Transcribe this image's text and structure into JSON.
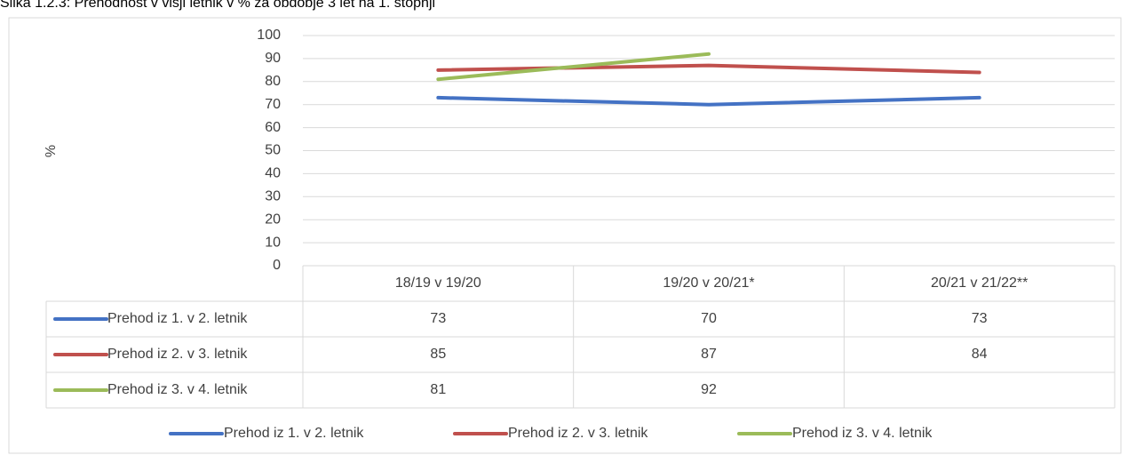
{
  "chart_data": {
    "type": "line",
    "title": "Slika 1.2.3: Prehodnost v višji letnik v % za obdobje 3 let na 1. stopnji",
    "y_label": "%",
    "categories": [
      "18/19 v 19/20",
      "19/20 v 20/21*",
      "20/21 v 21/22**"
    ],
    "series": [
      {
        "name": "Prehod iz 1. v 2. letnik",
        "color": "#4472c4",
        "values": [
          73,
          70,
          73
        ]
      },
      {
        "name": "Prehod iz 2. v 3. letnik",
        "color": "#c0504d",
        "values": [
          85,
          87,
          84
        ]
      },
      {
        "name": "Prehod iz 3. v 4. letnik",
        "color": "#9bbb59",
        "values": [
          81,
          92,
          null
        ]
      }
    ],
    "ylim": [
      0,
      100
    ],
    "yticks": [
      0,
      10,
      20,
      30,
      40,
      50,
      60,
      70,
      80,
      90,
      100
    ],
    "grid": true,
    "legend": "bottom"
  }
}
